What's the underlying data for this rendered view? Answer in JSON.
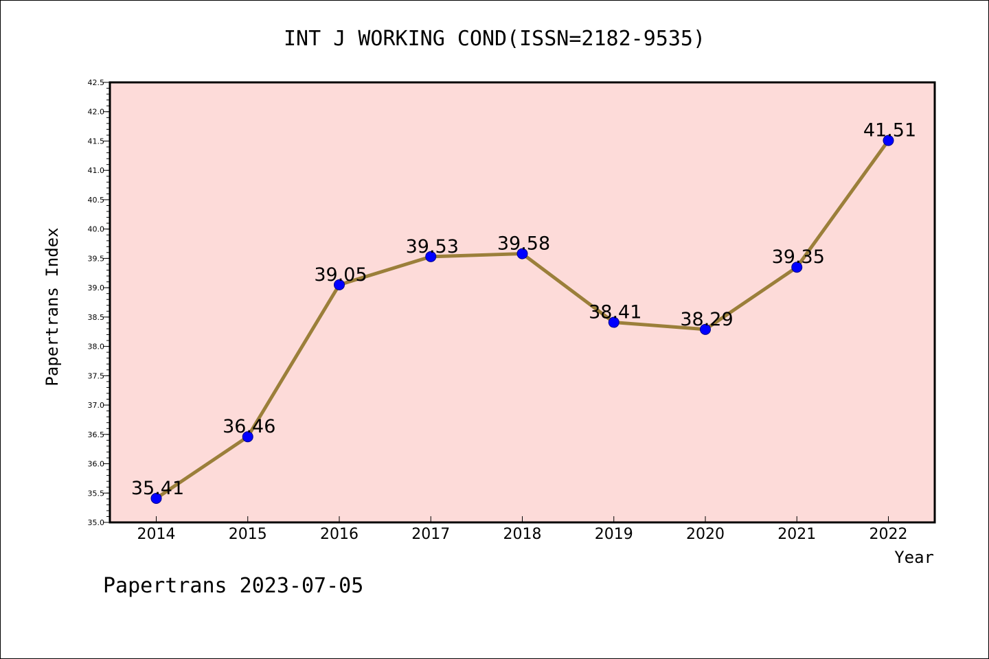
{
  "chart_data": {
    "type": "line",
    "title": "INT J WORKING COND(ISSN=2182-9535)",
    "xlabel": "Year",
    "ylabel": "Papertrans Index",
    "x": [
      "2014",
      "2015",
      "2016",
      "2017",
      "2018",
      "2019",
      "2020",
      "2021",
      "2022"
    ],
    "series": [
      {
        "values": [
          35.41,
          36.46,
          39.05,
          39.53,
          39.58,
          38.41,
          38.29,
          39.35,
          41.51
        ],
        "line_color": "#9b7f3a",
        "marker_color": "#0000ff"
      }
    ],
    "data_labels": [
      "35.41",
      "36.46",
      "39.05",
      "39.53",
      "39.58",
      "38.41",
      "38.29",
      "39.35",
      "41.51"
    ],
    "ylim": [
      35.0,
      42.5
    ],
    "yticks": [
      "35.0",
      "35.5",
      "36.0",
      "36.5",
      "37.0",
      "37.5",
      "38.0",
      "38.5",
      "39.0",
      "39.5",
      "40.0",
      "40.5",
      "41.0",
      "41.5",
      "42.0",
      "42.5"
    ],
    "plot_background": "#fddbd9",
    "grid": false,
    "legend": "none"
  },
  "footer": {
    "credit": "Papertrans 2023-07-05"
  }
}
